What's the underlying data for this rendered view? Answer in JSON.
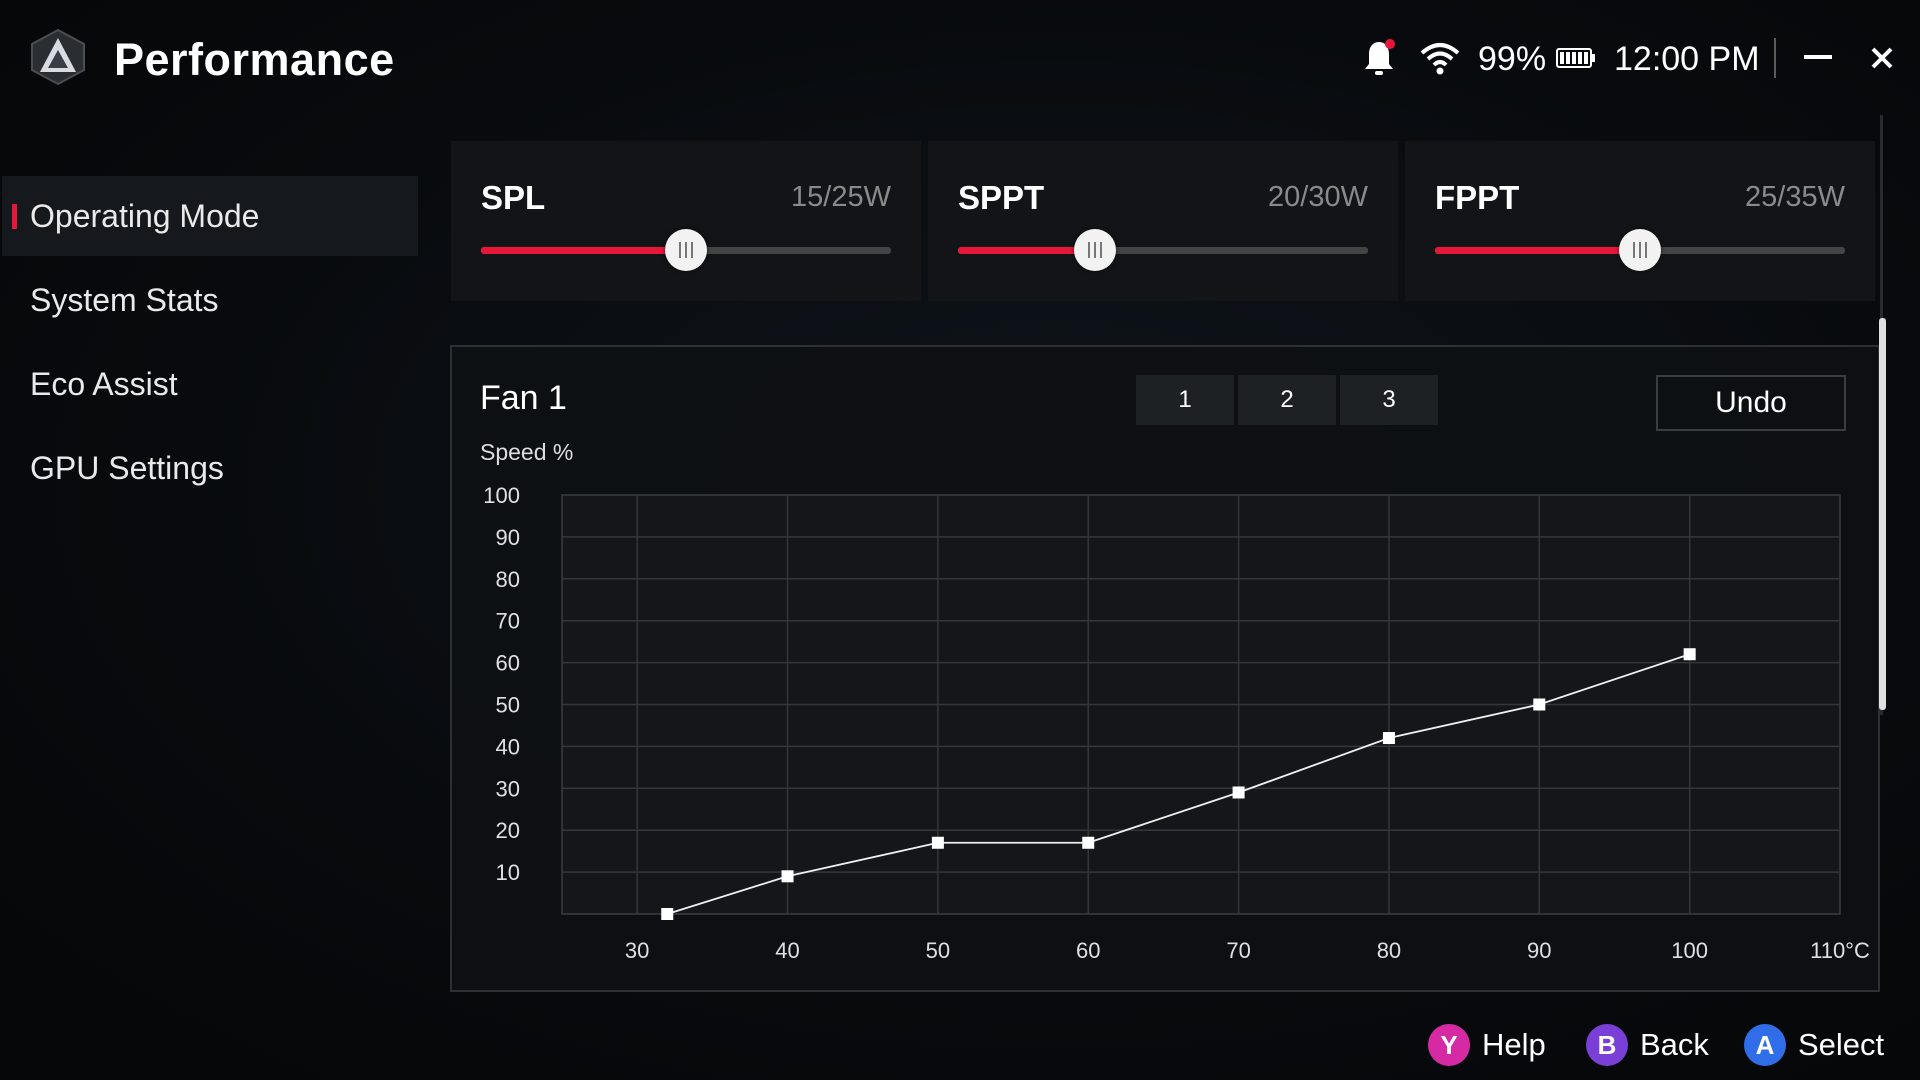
{
  "header": {
    "title": "Performance",
    "battery": "99%",
    "time": "12:00 PM",
    "icons": {
      "logo": "rog-logo-icon",
      "bell": "bell-icon",
      "wifi": "wifi-icon",
      "battery": "battery-icon",
      "minimize": "minimize-icon",
      "close": "close-icon"
    }
  },
  "sidebar": {
    "items": [
      {
        "label": "Operating Mode",
        "active": true
      },
      {
        "label": "System Stats"
      },
      {
        "label": "Eco Assist"
      },
      {
        "label": "GPU Settings"
      }
    ]
  },
  "sliders": [
    {
      "name": "SPL",
      "value_text": "15/25W",
      "value": 15,
      "min": 5,
      "max": 25
    },
    {
      "name": "SPPT",
      "value_text": "20/30W",
      "value": 20,
      "min": 15,
      "max": 30
    },
    {
      "name": "FPPT",
      "value_text": "25/35W",
      "value": 25,
      "min": 15,
      "max": 35
    }
  ],
  "fan": {
    "title": "Fan 1",
    "tabs": [
      "1",
      "2",
      "3"
    ],
    "undo_label": "Undo",
    "ylabel": "Speed %"
  },
  "chart_data": {
    "type": "line",
    "x": [
      32,
      40,
      50,
      60,
      70,
      80,
      90,
      100
    ],
    "series": [
      {
        "values": [
          0,
          9,
          17,
          17,
          29,
          42,
          50,
          62
        ]
      }
    ],
    "ylabel": "Speed %",
    "xlabel": "",
    "x_ticks": [
      "30",
      "40",
      "50",
      "60",
      "70",
      "80",
      "90",
      "100",
      "110°C"
    ],
    "y_ticks": [
      "100",
      "90",
      "80",
      "70",
      "60",
      "50",
      "40",
      "30",
      "20",
      "10"
    ],
    "xlim": [
      25,
      110
    ],
    "ylim": [
      0,
      100
    ],
    "grid": true
  },
  "hints": [
    {
      "key": "Y",
      "label": "Help",
      "color": "#d62aa5"
    },
    {
      "key": "B",
      "label": "Back",
      "color": "#7a3fd6"
    },
    {
      "key": "A",
      "label": "Select",
      "color": "#2f6ee8"
    }
  ],
  "colors": {
    "accent": "#e8173a"
  }
}
